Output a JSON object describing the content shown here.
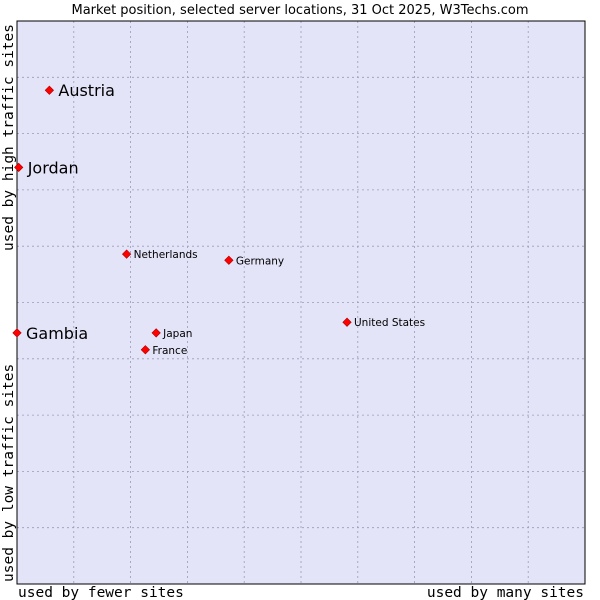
{
  "chart_data": {
    "type": "scatter",
    "title": "Market position, selected server locations, 31 Oct 2025, W3Techs.com",
    "xlabel_left": "used by fewer sites",
    "xlabel_right": "used by many sites",
    "ylabel_bottom": "used by low traffic sites",
    "ylabel_top": "used by high traffic sites",
    "xlim": [
      0,
      10
    ],
    "ylim": [
      0,
      10
    ],
    "grid": true,
    "colors": {
      "plot_background": "#e4e4f8",
      "grid": "#9a9ab8",
      "border": "#000000",
      "marker": "#ff0000"
    },
    "points": [
      {
        "name": "Austria",
        "x": 0.57,
        "y": 8.77,
        "emphasis": true
      },
      {
        "name": "Jordan",
        "x": 0.03,
        "y": 7.4,
        "emphasis": true
      },
      {
        "name": "Gambia",
        "x": 0.0,
        "y": 4.46,
        "emphasis": true
      },
      {
        "name": "Netherlands",
        "x": 1.93,
        "y": 5.86,
        "emphasis": false
      },
      {
        "name": "Germany",
        "x": 3.73,
        "y": 5.75,
        "emphasis": false
      },
      {
        "name": "United States",
        "x": 5.81,
        "y": 4.65,
        "emphasis": false
      },
      {
        "name": "Japan",
        "x": 2.45,
        "y": 4.46,
        "emphasis": false
      },
      {
        "name": "France",
        "x": 2.26,
        "y": 4.16,
        "emphasis": false
      }
    ]
  }
}
